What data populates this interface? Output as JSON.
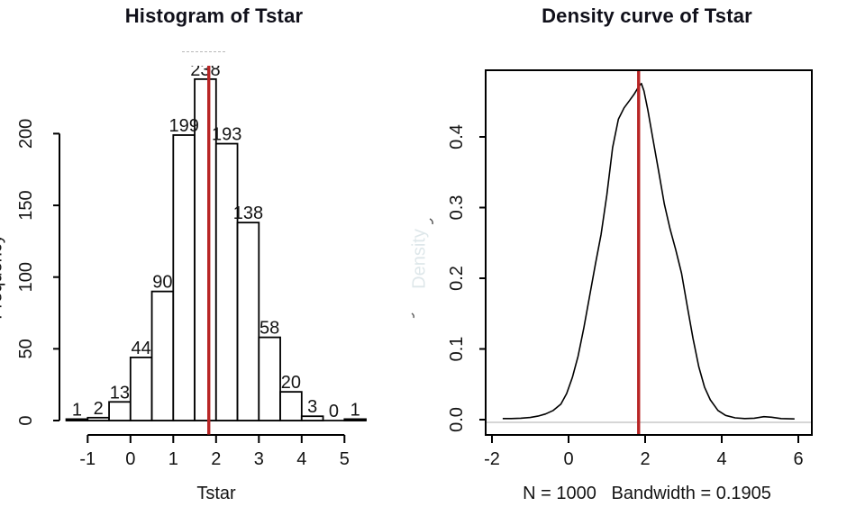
{
  "canvas": {
    "background": "#ffffff",
    "text_color": "#141414",
    "accent_red": "#b82525",
    "zero_line_gray": "#c9c9c9"
  },
  "chart_data": [
    {
      "type": "bar",
      "variant": "histogram",
      "title": "Histogram of Tstar",
      "xlabel": "Tstar",
      "ylabel": "Frequency",
      "bin_start": -1.5,
      "bin_width": 0.5,
      "counts": [
        1,
        2,
        13,
        44,
        90,
        199,
        238,
        193,
        138,
        58,
        20,
        3,
        0,
        1
      ],
      "bar_labels": [
        "1",
        "2",
        "13",
        "44",
        "90",
        "199",
        "238",
        "193",
        "138",
        "58",
        "20",
        "3",
        "0",
        "1"
      ],
      "x_ticks": [
        {
          "v": -1,
          "label": "-1"
        },
        {
          "v": 0,
          "label": "0"
        },
        {
          "v": 1,
          "label": "1"
        },
        {
          "v": 2,
          "label": "2"
        },
        {
          "v": 3,
          "label": "3"
        },
        {
          "v": 4,
          "label": "4"
        },
        {
          "v": 5,
          "label": "5"
        }
      ],
      "y_ticks": [
        {
          "v": 0,
          "label": "0"
        },
        {
          "v": 50,
          "label": "50"
        },
        {
          "v": 100,
          "label": "100"
        },
        {
          "v": 150,
          "label": "150"
        },
        {
          "v": 200,
          "label": "200"
        }
      ],
      "xlim": [
        -1.5,
        5.5
      ],
      "ylim": [
        0,
        238
      ],
      "grid": false,
      "bar_fill": "#ffffff",
      "bar_stroke": "#000000",
      "vline": {
        "x": 1.83,
        "color": "#b82525"
      },
      "total_n": 1000
    },
    {
      "type": "line",
      "variant": "density",
      "title": "Density curve of Tstar",
      "subtitle": "N = 1000   Bandwidth = 0.1905",
      "ylabel": "Density",
      "x_ticks": [
        {
          "v": -2,
          "label": "-2"
        },
        {
          "v": 0,
          "label": "0"
        },
        {
          "v": 2,
          "label": "2"
        },
        {
          "v": 4,
          "label": "4"
        },
        {
          "v": 6,
          "label": "6"
        }
      ],
      "y_ticks": [
        {
          "v": 0.0,
          "label": "0.0"
        },
        {
          "v": 0.1,
          "label": "0.1"
        },
        {
          "v": 0.2,
          "label": "0.2"
        },
        {
          "v": 0.3,
          "label": "0.3"
        },
        {
          "v": 0.4,
          "label": "0.4"
        }
      ],
      "xlim": [
        -1.72,
        5.9
      ],
      "ylim": [
        0,
        0.4955
      ],
      "grid": false,
      "line_color": "#000000",
      "zero_line": {
        "y": 0,
        "color": "#c9c9c9"
      },
      "vline": {
        "x": 1.83,
        "color": "#b82525"
      },
      "points": [
        [
          -1.72,
          0.0015
        ],
        [
          -1.5,
          0.0015
        ],
        [
          -1.25,
          0.002
        ],
        [
          -1.0,
          0.003
        ],
        [
          -0.8,
          0.005
        ],
        [
          -0.6,
          0.008
        ],
        [
          -0.4,
          0.013
        ],
        [
          -0.2,
          0.022
        ],
        [
          -0.05,
          0.037
        ],
        [
          0.1,
          0.06
        ],
        [
          0.25,
          0.09
        ],
        [
          0.4,
          0.13
        ],
        [
          0.55,
          0.175
        ],
        [
          0.7,
          0.22
        ],
        [
          0.85,
          0.262
        ],
        [
          1.0,
          0.318
        ],
        [
          1.15,
          0.385
        ],
        [
          1.3,
          0.425
        ],
        [
          1.45,
          0.441
        ],
        [
          1.6,
          0.452
        ],
        [
          1.72,
          0.461
        ],
        [
          1.83,
          0.471
        ],
        [
          1.9,
          0.4755
        ],
        [
          1.97,
          0.465
        ],
        [
          2.07,
          0.438
        ],
        [
          2.2,
          0.398
        ],
        [
          2.35,
          0.352
        ],
        [
          2.5,
          0.305
        ],
        [
          2.65,
          0.27
        ],
        [
          2.8,
          0.24
        ],
        [
          2.95,
          0.207
        ],
        [
          3.1,
          0.16
        ],
        [
          3.25,
          0.115
        ],
        [
          3.4,
          0.075
        ],
        [
          3.55,
          0.046
        ],
        [
          3.7,
          0.028
        ],
        [
          3.9,
          0.013
        ],
        [
          4.1,
          0.006
        ],
        [
          4.35,
          0.0025
        ],
        [
          4.6,
          0.0015
        ],
        [
          4.85,
          0.002
        ],
        [
          5.1,
          0.0042
        ],
        [
          5.3,
          0.0035
        ],
        [
          5.55,
          0.0015
        ],
        [
          5.9,
          0.001
        ]
      ]
    }
  ]
}
